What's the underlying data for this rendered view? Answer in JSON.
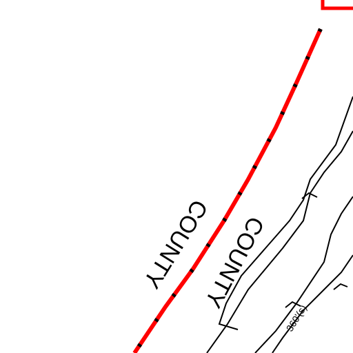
{
  "labels": [
    "COUNTY",
    "COUNTY",
    "360'(s)"
  ]
}
